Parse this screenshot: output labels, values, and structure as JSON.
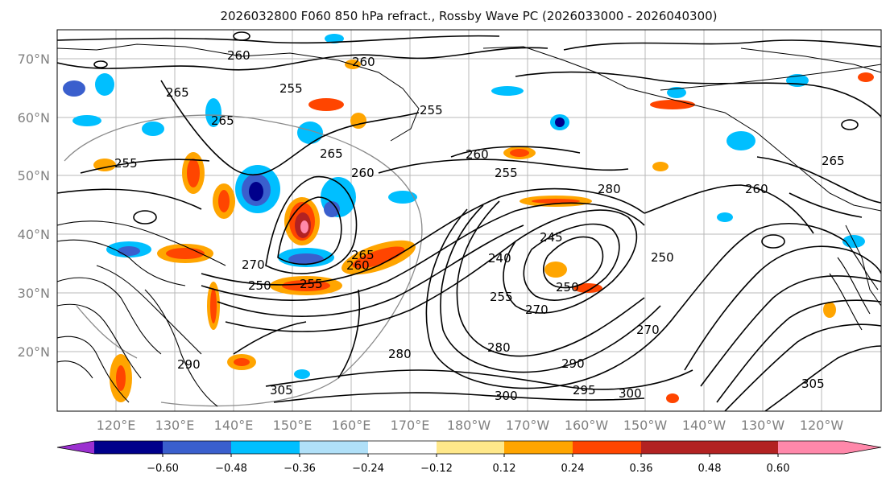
{
  "map": {
    "title": "2026032800 F060 850 hPa refract., Rossby Wave PC (2026033000 - 2026040300)",
    "lat_labels": [
      "70°N",
      "60°N",
      "50°N",
      "40°N",
      "30°N",
      "20°N"
    ],
    "lon_labels": [
      "120°E",
      "130°E",
      "140°E",
      "150°E",
      "160°E",
      "170°E",
      "180°W",
      "170°W",
      "160°W",
      "150°W",
      "140°W",
      "130°W",
      "120°W"
    ],
    "contour_labels": [
      "260",
      "255",
      "265",
      "265",
      "260",
      "255",
      "255",
      "265",
      "260",
      "270",
      "250",
      "255",
      "260",
      "265",
      "260",
      "255",
      "280",
      "240",
      "245",
      "250",
      "270",
      "255",
      "280",
      "270",
      "280",
      "290",
      "295",
      "300",
      "305",
      "290",
      "300",
      "305",
      "250",
      "265",
      "260"
    ],
    "colorbar": {
      "tick_labels": [
        "−0.60",
        "−0.48",
        "−0.36",
        "−0.24",
        "−0.12",
        "0.12",
        "0.24",
        "0.36",
        "0.48",
        "0.60"
      ],
      "colors": [
        "#9b30d0",
        "#00008b",
        "#3a5fcd",
        "#00bfff",
        "#b0e0f8",
        "#ffffff",
        "#ffe88a",
        "#ffa500",
        "#ff4500",
        "#b22222",
        "#ff88aa"
      ]
    }
  }
}
